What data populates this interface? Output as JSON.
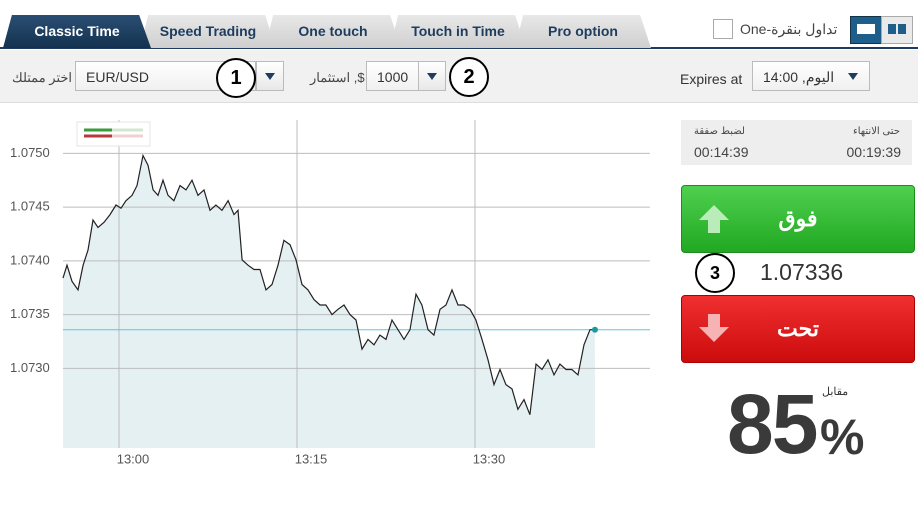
{
  "tabs": [
    "Classic Time",
    "Speed Trading",
    "One touch",
    "Touch in Time",
    "Pro option"
  ],
  "active_tab": 0,
  "one_click": "One-تداول بنقرة",
  "asset": {
    "label": "اختر ممتلك",
    "value": "EUR/USD"
  },
  "investment": {
    "label": "استثمار ,$",
    "value": "1000"
  },
  "expiry": {
    "label": "Expires at",
    "value": "14:00 ,اليوم"
  },
  "annotations": [
    "1",
    "2",
    "3"
  ],
  "timers": [
    {
      "label": "لضبط صفقة",
      "value": "00:14:39"
    },
    {
      "label": "حتى الانتهاء",
      "value": "00:19:39"
    }
  ],
  "call_button": "فوق",
  "put_button": "تحت",
  "current_price": "1.07336",
  "payout_label": "مقابل",
  "payout": "85",
  "payout_unit": "%",
  "chart_data": {
    "type": "line",
    "color": "#222222",
    "fill": "#e5f0f3",
    "grid": true,
    "reference_line": 1.07336,
    "reference_color": "#5cc8d8",
    "xlim": [
      775.28,
      824.75
    ],
    "ylim": [
      1.07226,
      1.07531
    ],
    "xticks": [
      {
        "value": 780,
        "label": "13:00"
      },
      {
        "value": 795,
        "label": "13:15"
      },
      {
        "value": 810,
        "label": "13:30"
      }
    ],
    "yticks": [
      {
        "value": 1.075,
        "label": "1.0750"
      },
      {
        "value": 1.0745,
        "label": "1.0745"
      },
      {
        "value": 1.074,
        "label": "1.0740"
      },
      {
        "value": 1.0735,
        "label": "1.0735"
      },
      {
        "value": 1.073,
        "label": "1.0730"
      }
    ],
    "x": [
      775.28,
      775.62,
      776.04,
      776.54,
      776.97,
      777.39,
      777.81,
      778.23,
      778.74,
      779.24,
      779.75,
      780.17,
      780.59,
      781.1,
      781.52,
      782.02,
      782.44,
      782.87,
      783.29,
      783.71,
      784.13,
      784.63,
      785.14,
      785.65,
      786.15,
      786.66,
      787.16,
      787.67,
      788.17,
      788.68,
      789.19,
      789.69,
      790.03,
      790.37,
      790.87,
      791.38,
      791.88,
      792.39,
      792.89,
      793.4,
      793.9,
      794.41,
      794.92,
      795.42,
      795.93,
      796.43,
      796.94,
      797.44,
      797.95,
      798.46,
      798.96,
      799.47,
      799.97,
      800.48,
      800.98,
      801.49,
      801.99,
      802.5,
      803.01,
      803.51,
      804.02,
      804.52,
      805.03,
      805.53,
      806.04,
      806.54,
      807.05,
      807.56,
      808.06,
      808.57,
      809.07,
      809.58,
      810.08,
      810.59,
      811.1,
      811.6,
      812.11,
      812.61,
      813.12,
      813.62,
      814.13,
      814.63,
      815.14,
      815.65,
      816.15,
      816.66,
      817.16,
      817.67,
      818.17,
      818.68,
      819.19,
      819.69,
      820.11
    ],
    "values": [
      1.07384,
      1.07396,
      1.07381,
      1.07373,
      1.07396,
      1.0741,
      1.07438,
      1.07431,
      1.07436,
      1.07443,
      1.07452,
      1.07449,
      1.07456,
      1.07461,
      1.0747,
      1.07498,
      1.07489,
      1.07466,
      1.07461,
      1.07475,
      1.07461,
      1.07456,
      1.0747,
      1.07466,
      1.07475,
      1.07461,
      1.07466,
      1.07447,
      1.07452,
      1.07447,
      1.07456,
      1.07443,
      1.07447,
      1.07401,
      1.07396,
      1.07392,
      1.07392,
      1.07373,
      1.07378,
      1.07396,
      1.07419,
      1.07415,
      1.07401,
      1.07378,
      1.07373,
      1.07364,
      1.07359,
      1.07359,
      1.0735,
      1.07355,
      1.07359,
      1.0735,
      1.07345,
      1.07318,
      1.07327,
      1.07322,
      1.07331,
      1.07327,
      1.07345,
      1.07336,
      1.07327,
      1.07336,
      1.07369,
      1.07359,
      1.07336,
      1.07331,
      1.07355,
      1.07359,
      1.07373,
      1.07359,
      1.07359,
      1.07355,
      1.07345,
      1.07327,
      1.07308,
      1.07285,
      1.07299,
      1.07285,
      1.07281,
      1.07262,
      1.07271,
      1.07257,
      1.07304,
      1.07299,
      1.07308,
      1.07294,
      1.07304,
      1.07299,
      1.07299,
      1.07294,
      1.07322,
      1.07336,
      1.07336
    ]
  }
}
